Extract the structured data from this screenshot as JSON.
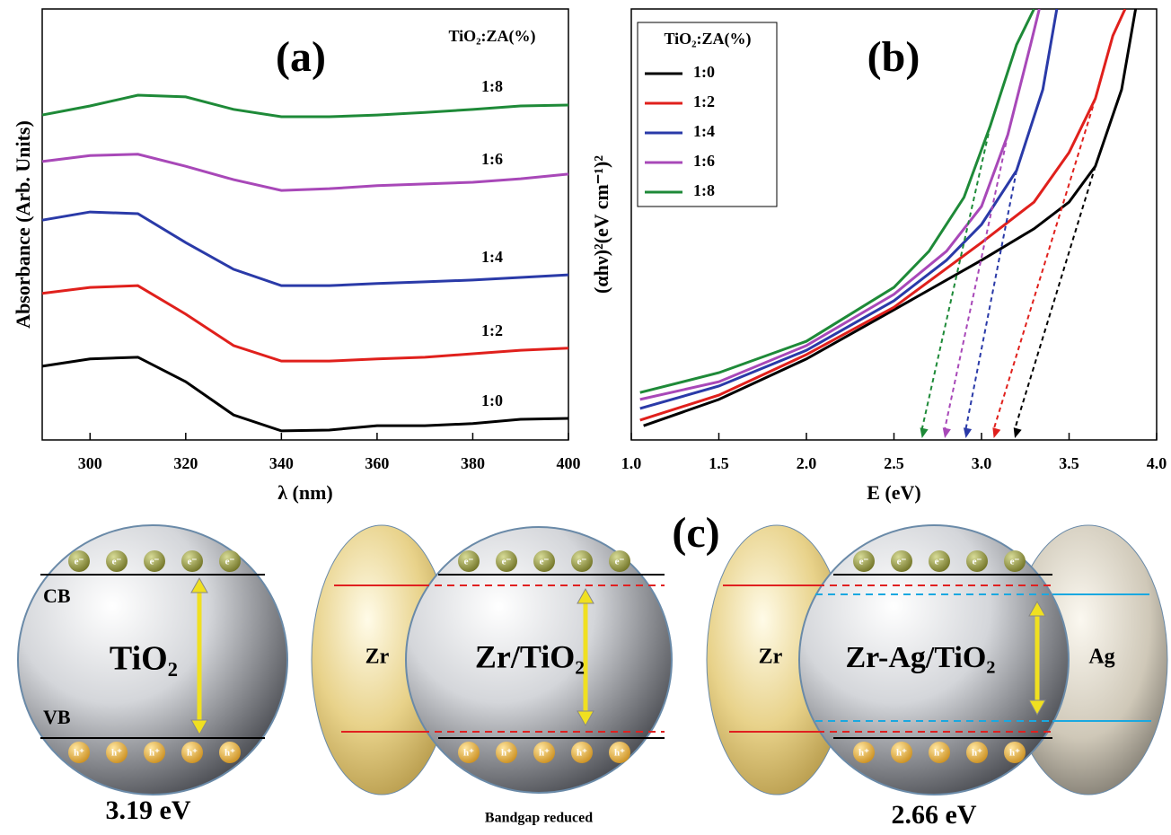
{
  "chart_data": [
    {
      "type": "line",
      "panel_label": "(a)",
      "x_label": "λ (nm)",
      "y_label": "Absorbance (Arb. Units)",
      "legend": "inline",
      "legend_title": "TiO₂:ZA(%)",
      "x": [
        290,
        300,
        310,
        320,
        330,
        340,
        350,
        360,
        370,
        380,
        390,
        400
      ],
      "xlim": [
        290,
        400
      ],
      "xticks": [
        300,
        320,
        340,
        360,
        380,
        400
      ],
      "ylim": [
        0,
        100
      ],
      "series": [
        {
          "name": "1:0",
          "color": "#000000",
          "values": [
            17.1,
            18.8,
            19.2,
            13.5,
            5.8,
            2.1,
            2.3,
            3.3,
            3.3,
            3.8,
            4.8,
            5.0
          ]
        },
        {
          "name": "1:2",
          "color": "#e0201c",
          "values": [
            34.0,
            35.4,
            35.8,
            29.2,
            21.9,
            18.3,
            18.3,
            18.8,
            19.2,
            20.0,
            20.8,
            21.3
          ]
        },
        {
          "name": "1:4",
          "color": "#2a3aa8",
          "values": [
            51.0,
            52.9,
            52.5,
            45.8,
            39.6,
            35.8,
            35.8,
            36.3,
            36.7,
            37.1,
            37.7,
            38.3
          ]
        },
        {
          "name": "1:6",
          "color": "#a848b8",
          "values": [
            64.6,
            66.0,
            66.3,
            63.5,
            60.4,
            57.9,
            58.3,
            59.0,
            59.4,
            59.8,
            60.6,
            61.7
          ]
        },
        {
          "name": "1:8",
          "color": "#1e8a38",
          "values": [
            75.4,
            77.5,
            80.0,
            79.6,
            76.7,
            75.0,
            75.0,
            75.4,
            76.0,
            76.7,
            77.5,
            77.7
          ]
        }
      ]
    },
    {
      "type": "line",
      "panel_label": "(b)",
      "x_label": "E (eV)",
      "y_label": "(αhν)²(eV cm⁻¹)²",
      "legend": "upper left",
      "legend_title": "TiO₂:ZA(%)",
      "xlim": [
        1,
        4
      ],
      "ylim": [
        0,
        100
      ],
      "xticks": [
        {
          "value": 1,
          "label": "1.0"
        },
        1.5,
        {
          "value": 2,
          "label": "2.0"
        },
        2.5,
        {
          "value": 3,
          "label": "3.0"
        },
        3.5,
        {
          "value": 4,
          "label": "4.0"
        }
      ],
      "series": [
        {
          "name": "1:0",
          "color": "#000000",
          "x": [
            1.07,
            1.5,
            2.0,
            2.5,
            3.0,
            3.3,
            3.5,
            3.65,
            3.8,
            3.88
          ],
          "values": [
            3.3,
            9.4,
            18.8,
            30.2,
            41.7,
            49.0,
            55.2,
            63.5,
            81.3,
            100
          ],
          "intercept": 3.19
        },
        {
          "name": "1:2",
          "color": "#e0201c",
          "x": [
            1.05,
            1.5,
            2.0,
            2.5,
            3.0,
            3.3,
            3.5,
            3.65,
            3.75,
            3.82
          ],
          "values": [
            4.6,
            10.4,
            19.8,
            30.8,
            45.8,
            55.2,
            66.7,
            79.2,
            93.8,
            100
          ],
          "intercept": 3.07
        },
        {
          "name": "1:4",
          "color": "#2a3aa8",
          "x": [
            1.05,
            1.5,
            2.0,
            2.5,
            2.8,
            3.0,
            3.2,
            3.35,
            3.43
          ],
          "values": [
            7.3,
            12.5,
            20.8,
            32.3,
            41.7,
            50,
            62.5,
            81.3,
            100
          ],
          "intercept": 2.91
        },
        {
          "name": "1:6",
          "color": "#a848b8",
          "x": [
            1.05,
            1.5,
            2.0,
            2.5,
            2.8,
            3.0,
            3.15,
            3.28,
            3.33
          ],
          "values": [
            9.4,
            13.5,
            21.9,
            33.8,
            43.8,
            54.2,
            70.8,
            91.7,
            100
          ],
          "intercept": 2.79
        },
        {
          "name": "1:8",
          "color": "#1e8a38",
          "x": [
            1.05,
            1.5,
            2.0,
            2.5,
            2.7,
            2.9,
            3.05,
            3.2,
            3.3
          ],
          "values": [
            11.0,
            15.6,
            22.9,
            35.4,
            43.8,
            56.3,
            72.9,
            91.7,
            100
          ],
          "intercept": 2.66
        }
      ]
    }
  ],
  "diagram": {
    "label": "(c)",
    "electron": "e⁻",
    "hole": "h⁺",
    "panels": [
      {
        "title": "TiO₂",
        "cb": "CB",
        "vb": "VB",
        "caption": "3.19 eV"
      },
      {
        "left": "Zr",
        "title": "Zr/TiO₂",
        "caption": "Bandgap reduced"
      },
      {
        "left": "Zr",
        "title": "Zr-Ag/TiO₂",
        "right": "Ag",
        "caption": "2.66 eV"
      }
    ]
  }
}
